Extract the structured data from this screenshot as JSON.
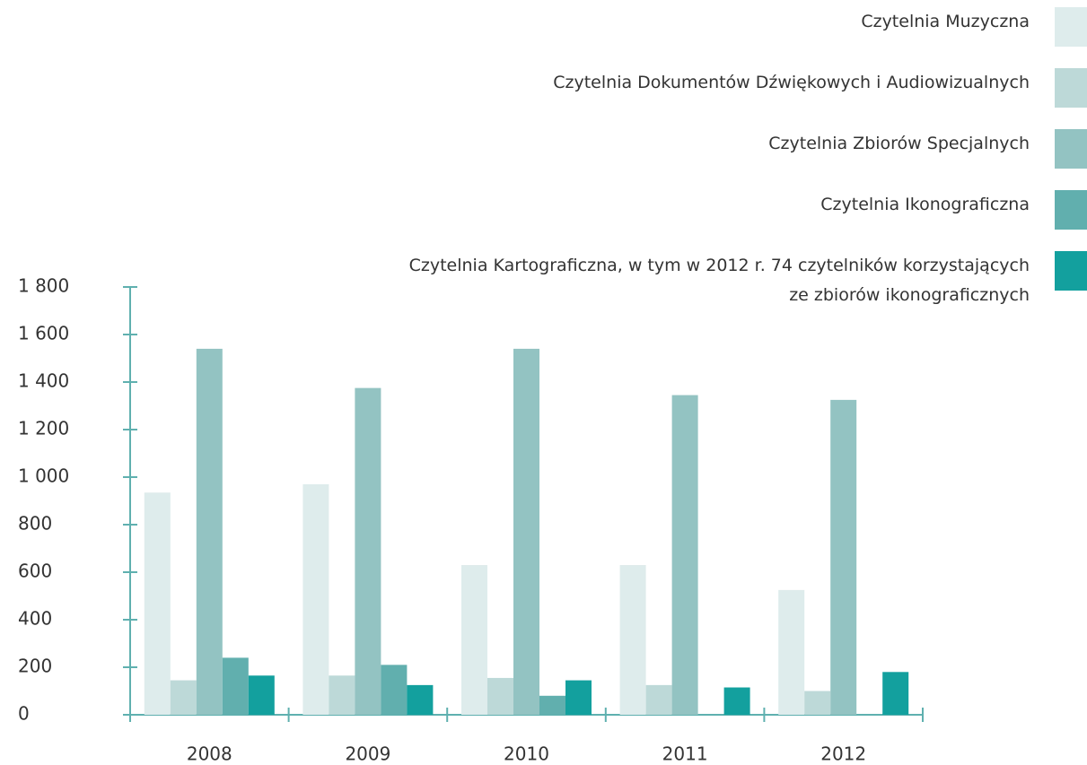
{
  "chart_data": {
    "type": "bar",
    "categories": [
      "2008",
      "2009",
      "2010",
      "2011",
      "2012"
    ],
    "series": [
      {
        "name": "Czytelnia Muzyczna",
        "color": "#deecec",
        "values": [
          935,
          970,
          630,
          630,
          525
        ]
      },
      {
        "name": "Czytelnia Dokumentów  Dźwiękowych i Audiowizualnych",
        "color": "#bdd9d8",
        "values": [
          145,
          165,
          155,
          125,
          100
        ]
      },
      {
        "name": "Czytelnia Zbiorów Specjalnych",
        "color": "#93c3c2",
        "values": [
          1540,
          1375,
          1540,
          1345,
          1325
        ]
      },
      {
        "name": "Czytelnia Ikonograficzna",
        "color": "#61afae",
        "values": [
          240,
          210,
          80,
          null,
          null
        ]
      },
      {
        "name": "Czytelnia Kartograficzna, w tym  w 2012 r. 74 czytelników korzystających ze zbiorów ikonograficznych",
        "color": "#13a09e",
        "values": [
          165,
          125,
          145,
          115,
          180
        ]
      }
    ],
    "ylim": [
      0,
      1800
    ],
    "yticks": [
      0,
      200,
      400,
      600,
      800,
      {
        "value": 1000,
        "label": "1 000"
      },
      {
        "value": 1200,
        "label": "1 200"
      },
      {
        "value": 1400,
        "label": "1 400"
      },
      {
        "value": 1600,
        "label": "1 600"
      },
      {
        "value": 1800,
        "label": "1 800"
      }
    ],
    "legend": "top-right"
  }
}
